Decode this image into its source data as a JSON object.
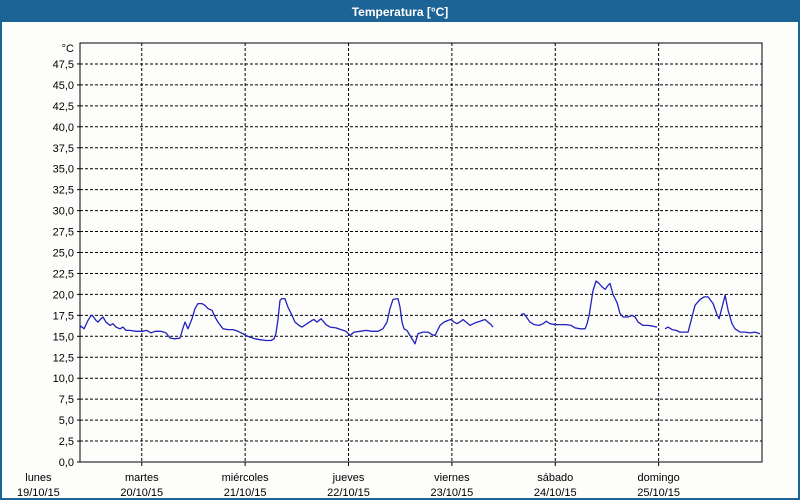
{
  "window": {
    "title": "Temperatura [°C]"
  },
  "colors": {
    "titlebar_bg": "#1c6396",
    "titlebar_text": "#ffffff",
    "window_border": "#1c6396",
    "plot_bg": "#fdfefb",
    "grid": "#000000",
    "line": "#2121bd",
    "text": "#000000"
  },
  "chart_data": {
    "type": "line",
    "title": "Temperatura [°C]",
    "ylabel": "°C",
    "grid": "dashed",
    "legend_position": "none",
    "y_axis": {
      "min": 0,
      "max": 50,
      "tick_step": 2.5,
      "unit_label": "°C",
      "decimal_separator": ",",
      "ticks": [
        {
          "value": 0,
          "label": "0,0"
        },
        {
          "value": 2.5,
          "label": "2,5"
        },
        {
          "value": 5,
          "label": "5,0"
        },
        {
          "value": 7.5,
          "label": "7,5"
        },
        {
          "value": 10,
          "label": "10,0"
        },
        {
          "value": 12.5,
          "label": "12,5"
        },
        {
          "value": 15,
          "label": "15,0"
        },
        {
          "value": 17.5,
          "label": "17,5"
        },
        {
          "value": 20,
          "label": "20,0"
        },
        {
          "value": 22.5,
          "label": "22,5"
        },
        {
          "value": 25,
          "label": "25,0"
        },
        {
          "value": 27.5,
          "label": "27,5"
        },
        {
          "value": 30,
          "label": "30,0"
        },
        {
          "value": 32.5,
          "label": "32,5"
        },
        {
          "value": 35,
          "label": "35,0"
        },
        {
          "value": 37.5,
          "label": "37,5"
        },
        {
          "value": 40,
          "label": "40,0"
        },
        {
          "value": 42.5,
          "label": "42,5"
        },
        {
          "value": 45,
          "label": "45,0"
        },
        {
          "value": 47.5,
          "label": "47,5"
        }
      ]
    },
    "x_axis": {
      "unit": "days",
      "visible_range_days": [
        0.4,
        7.0
      ],
      "days": [
        {
          "name": "lunes",
          "date": "19/10/15"
        },
        {
          "name": "martes",
          "date": "20/10/15"
        },
        {
          "name": "miércoles",
          "date": "21/10/15"
        },
        {
          "name": "jueves",
          "date": "22/10/15"
        },
        {
          "name": "viernes",
          "date": "23/10/15"
        },
        {
          "name": "sábado",
          "date": "24/10/15"
        },
        {
          "name": "domingo",
          "date": "25/10/15"
        }
      ]
    },
    "series": [
      {
        "name": "Temperatura [°C]",
        "color": "#2121bd",
        "x_unit": "days_since_monday_00h",
        "segments": [
          [
            [
              0.402,
              16.0
            ],
            [
              0.412,
              16.2
            ],
            [
              0.441,
              15.9
            ],
            [
              0.48,
              16.9
            ],
            [
              0.509,
              17.5
            ],
            [
              0.528,
              17.4
            ],
            [
              0.557,
              16.9
            ],
            [
              0.577,
              16.7
            ],
            [
              0.606,
              17.1
            ],
            [
              0.625,
              17.3
            ],
            [
              0.654,
              16.7
            ],
            [
              0.693,
              16.3
            ],
            [
              0.722,
              16.5
            ],
            [
              0.751,
              16.1
            ],
            [
              0.789,
              15.9
            ],
            [
              0.818,
              16.1
            ],
            [
              0.847,
              15.7
            ],
            [
              0.886,
              15.7
            ],
            [
              0.944,
              15.6
            ],
            [
              1.002,
              15.6
            ],
            [
              1.05,
              15.7
            ],
            [
              1.089,
              15.4
            ],
            [
              1.128,
              15.6
            ],
            [
              1.186,
              15.6
            ],
            [
              1.234,
              15.4
            ],
            [
              1.273,
              14.8
            ],
            [
              1.321,
              14.7
            ],
            [
              1.37,
              14.8
            ],
            [
              1.399,
              16.0
            ],
            [
              1.418,
              16.7
            ],
            [
              1.447,
              15.9
            ],
            [
              1.486,
              17.1
            ],
            [
              1.515,
              18.3
            ],
            [
              1.544,
              18.9
            ],
            [
              1.582,
              18.9
            ],
            [
              1.611,
              18.7
            ],
            [
              1.64,
              18.3
            ],
            [
              1.679,
              18.1
            ],
            [
              1.708,
              17.3
            ],
            [
              1.737,
              16.7
            ],
            [
              1.786,
              15.9
            ],
            [
              1.834,
              15.8
            ],
            [
              1.882,
              15.8
            ],
            [
              1.931,
              15.6
            ],
            [
              1.979,
              15.3
            ],
            [
              2.008,
              15.1
            ],
            [
              2.047,
              14.9
            ],
            [
              2.095,
              14.7
            ],
            [
              2.144,
              14.6
            ],
            [
              2.202,
              14.5
            ],
            [
              2.25,
              14.5
            ],
            [
              2.279,
              14.7
            ],
            [
              2.298,
              15.3
            ],
            [
              2.318,
              17.0
            ],
            [
              2.337,
              19.3
            ],
            [
              2.356,
              19.5
            ],
            [
              2.385,
              19.5
            ],
            [
              2.414,
              18.5
            ],
            [
              2.453,
              17.5
            ],
            [
              2.482,
              16.7
            ],
            [
              2.521,
              16.3
            ],
            [
              2.55,
              16.1
            ],
            [
              2.598,
              16.5
            ],
            [
              2.647,
              16.9
            ],
            [
              2.666,
              17.0
            ],
            [
              2.695,
              16.7
            ],
            [
              2.734,
              17.1
            ],
            [
              2.782,
              16.4
            ],
            [
              2.821,
              16.1
            ],
            [
              2.879,
              16.0
            ],
            [
              2.927,
              15.8
            ],
            [
              2.976,
              15.6
            ],
            [
              3.014,
              15.1
            ],
            [
              3.053,
              15.5
            ],
            [
              3.111,
              15.6
            ],
            [
              3.169,
              15.7
            ],
            [
              3.227,
              15.6
            ],
            [
              3.285,
              15.6
            ],
            [
              3.333,
              15.9
            ],
            [
              3.372,
              16.7
            ],
            [
              3.401,
              18.3
            ],
            [
              3.43,
              19.4
            ],
            [
              3.479,
              19.5
            ],
            [
              3.498,
              18.5
            ],
            [
              3.517,
              16.7
            ],
            [
              3.537,
              15.9
            ],
            [
              3.566,
              15.7
            ],
            [
              3.595,
              15.1
            ],
            [
              3.624,
              14.5
            ],
            [
              3.643,
              14.1
            ],
            [
              3.672,
              15.3
            ],
            [
              3.72,
              15.5
            ],
            [
              3.769,
              15.5
            ],
            [
              3.808,
              15.2
            ],
            [
              3.837,
              15.1
            ],
            [
              3.885,
              16.3
            ],
            [
              3.924,
              16.7
            ],
            [
              3.962,
              16.9
            ],
            [
              3.991,
              17.0
            ],
            [
              4.02,
              16.7
            ],
            [
              4.049,
              16.5
            ],
            [
              4.088,
              16.8
            ],
            [
              4.108,
              17.0
            ],
            [
              4.146,
              16.6
            ],
            [
              4.175,
              16.3
            ],
            [
              4.224,
              16.6
            ],
            [
              4.272,
              16.8
            ],
            [
              4.32,
              17.0
            ],
            [
              4.349,
              16.7
            ],
            [
              4.378,
              16.4
            ],
            [
              4.398,
              16.1
            ]
          ],
          [
            [
              4.669,
              17.6
            ],
            [
              4.698,
              17.7
            ],
            [
              4.727,
              17.2
            ],
            [
              4.756,
              16.7
            ],
            [
              4.795,
              16.4
            ],
            [
              4.843,
              16.3
            ],
            [
              4.882,
              16.5
            ],
            [
              4.911,
              16.8
            ],
            [
              4.95,
              16.5
            ],
            [
              4.998,
              16.4
            ],
            [
              5.056,
              16.4
            ],
            [
              5.105,
              16.4
            ],
            [
              5.153,
              16.3
            ],
            [
              5.192,
              16.0
            ],
            [
              5.24,
              15.9
            ],
            [
              5.289,
              15.9
            ],
            [
              5.308,
              16.5
            ],
            [
              5.327,
              17.5
            ],
            [
              5.347,
              19.0
            ],
            [
              5.366,
              20.5
            ],
            [
              5.395,
              21.6
            ],
            [
              5.424,
              21.3
            ],
            [
              5.453,
              20.9
            ],
            [
              5.482,
              20.6
            ],
            [
              5.511,
              21.1
            ],
            [
              5.53,
              21.3
            ],
            [
              5.559,
              20.0
            ],
            [
              5.598,
              19.0
            ],
            [
              5.627,
              17.7
            ],
            [
              5.656,
              17.3
            ],
            [
              5.704,
              17.3
            ],
            [
              5.743,
              17.5
            ],
            [
              5.772,
              17.3
            ],
            [
              5.801,
              16.7
            ],
            [
              5.849,
              16.3
            ],
            [
              5.898,
              16.3
            ],
            [
              5.946,
              16.2
            ],
            [
              5.985,
              16.1
            ]
          ],
          [
            [
              6.062,
              15.9
            ],
            [
              6.091,
              16.1
            ],
            [
              6.13,
              15.8
            ],
            [
              6.169,
              15.7
            ],
            [
              6.207,
              15.5
            ],
            [
              6.256,
              15.5
            ],
            [
              6.285,
              15.5
            ],
            [
              6.323,
              17.3
            ],
            [
              6.352,
              18.7
            ],
            [
              6.401,
              19.4
            ],
            [
              6.44,
              19.7
            ],
            [
              6.478,
              19.7
            ],
            [
              6.527,
              18.9
            ],
            [
              6.565,
              17.6
            ],
            [
              6.585,
              17.1
            ],
            [
              6.614,
              18.5
            ],
            [
              6.643,
              19.9
            ],
            [
              6.672,
              18.1
            ],
            [
              6.71,
              16.5
            ],
            [
              6.739,
              15.9
            ],
            [
              6.788,
              15.5
            ],
            [
              6.836,
              15.5
            ],
            [
              6.884,
              15.4
            ],
            [
              6.933,
              15.5
            ],
            [
              6.981,
              15.3
            ]
          ]
        ]
      }
    ]
  }
}
